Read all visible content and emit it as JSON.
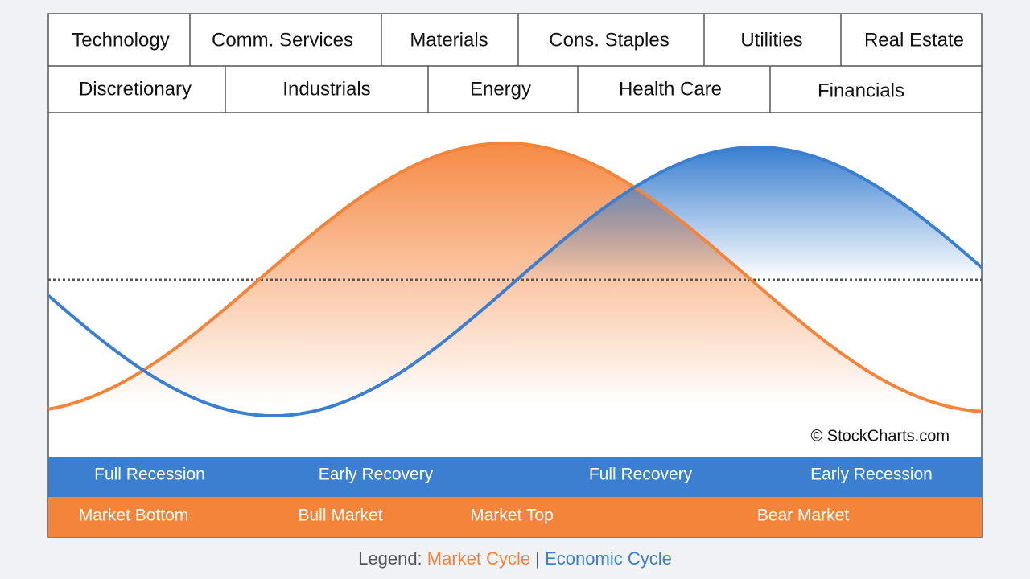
{
  "header": {
    "row1": [
      "Technology",
      "Comm. Services",
      "Materials",
      "Cons. Staples",
      "Utilities",
      "Real Estate"
    ],
    "row2": [
      "Discretionary",
      "Industrials",
      "Energy",
      "Health Care",
      "Financials"
    ]
  },
  "watermark": "© StockCharts.com",
  "phases": {
    "economic": [
      "Full Recession",
      "Early Recovery",
      "Full Recovery",
      "Early Recession"
    ],
    "market": [
      "Market Bottom",
      "Bull Market",
      "Market Top",
      "Bear Market"
    ]
  },
  "legend": {
    "label": "Legend:",
    "market": "Market Cycle",
    "separator": "|",
    "economic": "Economic Cycle"
  }
}
